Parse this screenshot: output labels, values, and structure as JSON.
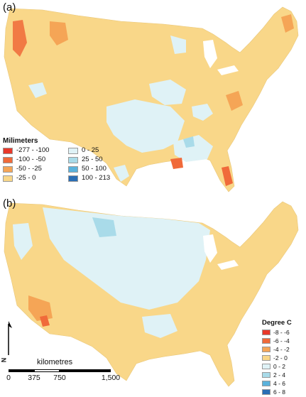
{
  "panel_a": {
    "label": "(a)",
    "legend_title": "Milimeters",
    "legend": [
      {
        "label": "-277 - -100",
        "color": "#e8382a"
      },
      {
        "label": "-100 - -50",
        "color": "#f06a3a"
      },
      {
        "label": "-50 - -25",
        "color": "#f5a556"
      },
      {
        "label": "-25 - 0",
        "color": "#f9d789"
      },
      {
        "label": "0 - 25",
        "color": "#dff2f6"
      },
      {
        "label": "25 - 50",
        "color": "#a9dbe9"
      },
      {
        "label": "50 - 100",
        "color": "#5ab2dc"
      },
      {
        "label": "100 - 213",
        "color": "#2a6eb5"
      }
    ]
  },
  "panel_b": {
    "label": "(b)",
    "legend_title": "Degree C",
    "legend": [
      {
        "label": "-8 - -6",
        "color": "#e8382a"
      },
      {
        "label": "-6 - -4",
        "color": "#f06a3a"
      },
      {
        "label": "-4 - -2",
        "color": "#f5a556"
      },
      {
        "label": "-2 - 0",
        "color": "#f9d789"
      },
      {
        "label": "0 - 2",
        "color": "#dff2f6"
      },
      {
        "label": "2 - 4",
        "color": "#a9dbe9"
      },
      {
        "label": "4 - 6",
        "color": "#5ab2dc"
      },
      {
        "label": "6 - 8",
        "color": "#2a6eb5"
      }
    ]
  },
  "scale_bar": {
    "unit": "kilometres",
    "ticks": [
      "0",
      "375",
      "750",
      "1,500"
    ]
  },
  "north_arrow": {
    "letter": "N"
  }
}
